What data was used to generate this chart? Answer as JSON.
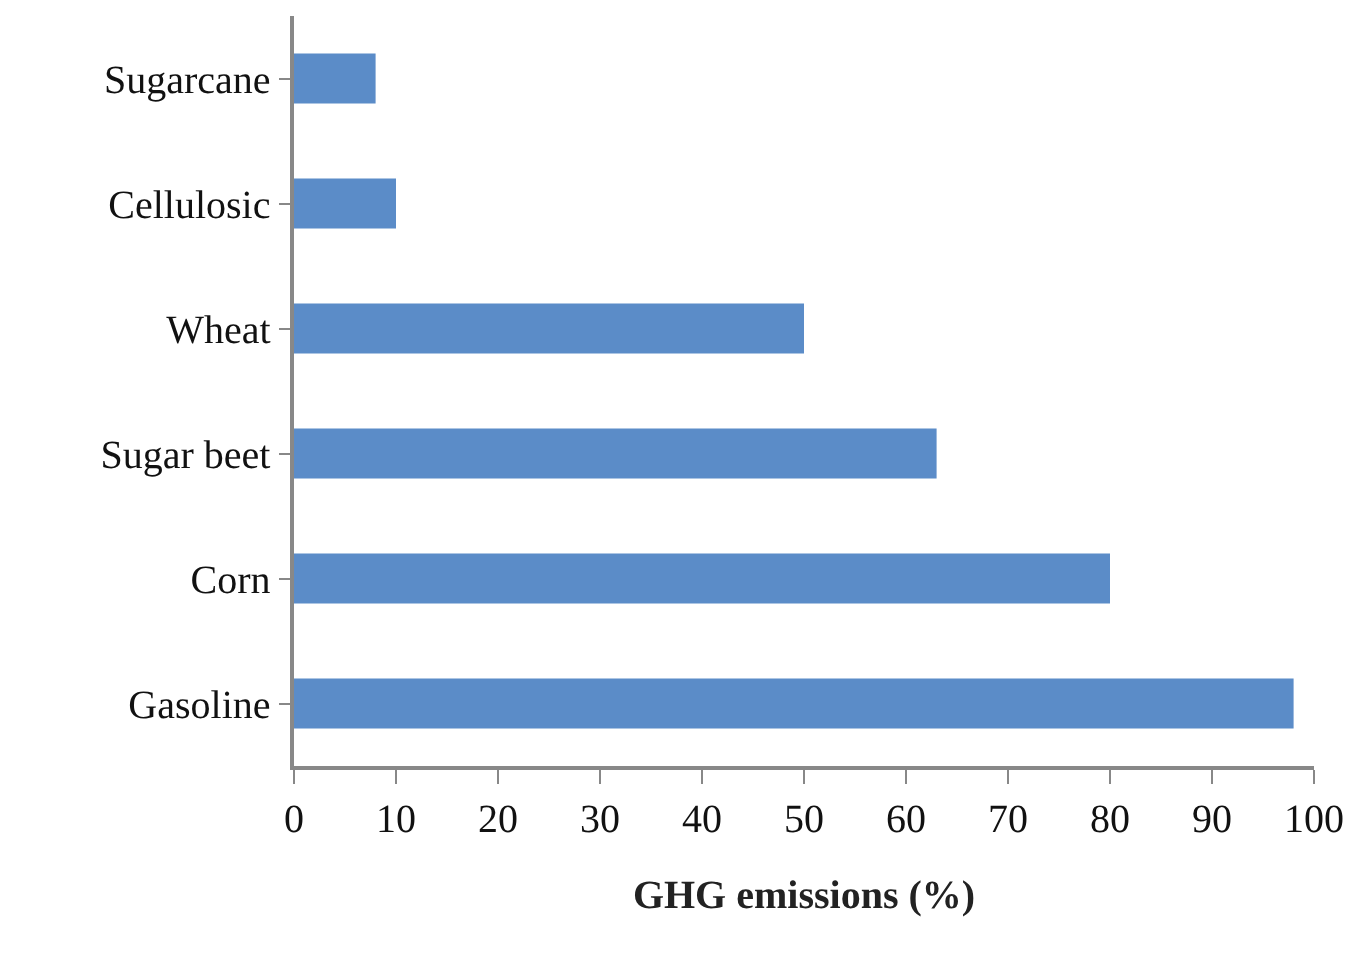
{
  "chart_data": {
    "type": "bar",
    "orientation": "horizontal",
    "xlabel": "GHG emissions (%)",
    "categories": [
      "Sugarcane",
      "Cellulosic",
      "Wheat",
      "Sugar beet",
      "Corn",
      "Gasoline"
    ],
    "values": [
      8,
      10,
      50,
      63,
      80,
      98
    ],
    "color": "#5b8cc8",
    "xlim": [
      0,
      100
    ],
    "xticks": [
      0,
      10,
      20,
      30,
      40,
      50,
      60,
      70,
      80,
      90,
      100
    ],
    "grid": false
  }
}
